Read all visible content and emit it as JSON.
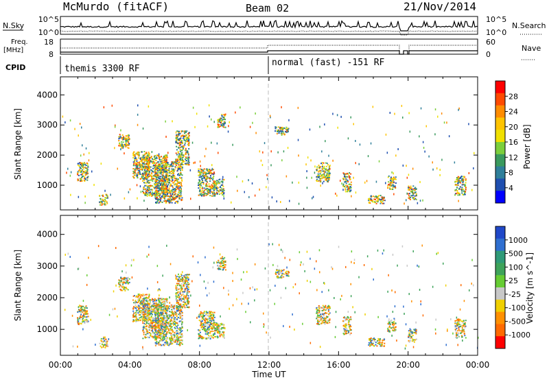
{
  "header": {
    "title": "McMurdo (fitACF)",
    "beam": "Beam 02",
    "date": "21/Nov/2014"
  },
  "top_panels": {
    "nsky_label": "N.Sky",
    "nsky_ticks": [
      "10^5",
      "10^0"
    ],
    "nsearch_label": "N.Search",
    "nsearch_ticks": [
      "10^5",
      "10^0"
    ],
    "freq_label_1": "Freq.",
    "freq_label_2": "[MHz]",
    "freq_ticks": [
      "18",
      "8"
    ],
    "nave_label": "Nave",
    "nave_ticks": [
      "60",
      "0"
    ],
    "cpid_label": "CPID",
    "cpid_segments": [
      "themis 3300 RF",
      "normal (fast) -151 RF"
    ]
  },
  "chart_data": [
    {
      "type": "heatmap",
      "title": "",
      "quantity": "Power",
      "ylabel": "Slant Range [km]",
      "colorbar_label": "Power [dB]",
      "colorbar_ticks": [
        "28",
        "24",
        "20",
        "16",
        "12",
        "8",
        "4"
      ],
      "colorbar_colors": [
        "#ff0000",
        "#ff4a00",
        "#ff8c00",
        "#ffc400",
        "#f0e000",
        "#7ccf3c",
        "#3a9a5e",
        "#2f7f9a",
        "#1f4fb0",
        "#0000ff"
      ],
      "yticks": [
        "4000",
        "3000",
        "2000",
        "1000"
      ],
      "ylim": [
        180,
        4600
      ],
      "xlim": [
        "00:00",
        "24:00"
      ]
    },
    {
      "type": "heatmap",
      "title": "",
      "quantity": "Velocity",
      "ylabel": "Slant Range [km]",
      "colorbar_label": "Velocity [m s^-1]",
      "colorbar_ticks": [
        "1000",
        "500",
        "100",
        "25",
        "-25",
        "-100",
        "-500",
        "-1000"
      ],
      "colorbar_colors": [
        "#2048c8",
        "#2f6fd0",
        "#2f9a78",
        "#3ea35a",
        "#66cc33",
        "#c8c8c8",
        "#f0d000",
        "#ff9000",
        "#ff6a00",
        "#ff0000"
      ],
      "yticks": [
        "4000",
        "3000",
        "2000",
        "1000"
      ],
      "ylim": [
        180,
        4600
      ],
      "xlim": [
        "00:00",
        "24:00"
      ]
    }
  ],
  "x_axis": {
    "ticks": [
      "00:00",
      "04:00",
      "08:00",
      "12:00",
      "16:00",
      "20:00",
      "00:00"
    ],
    "label": "Time UT"
  }
}
